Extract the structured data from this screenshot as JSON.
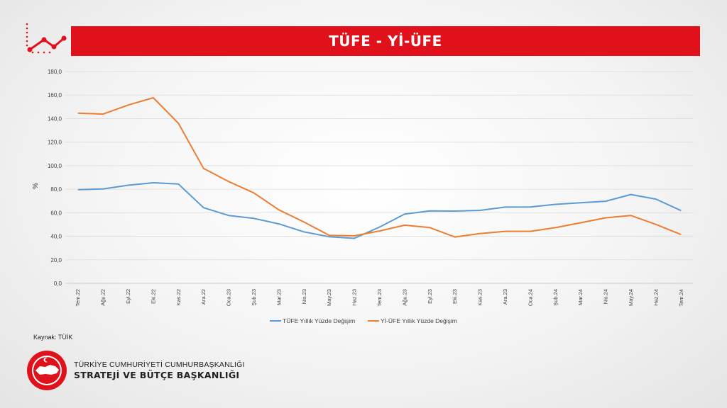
{
  "header": {
    "title": "TÜFE - Yİ-ÜFE"
  },
  "icons": {
    "trend": "line-chart-icon",
    "org_logo": "emblem-icon"
  },
  "colors": {
    "accent": "#e0111b",
    "tufe": "#5b9bd5",
    "yiufe": "#ed7d31"
  },
  "chart_data": {
    "type": "line",
    "ylabel": "%",
    "ylim": [
      0,
      180
    ],
    "yticks": [
      "0,0",
      "20,0",
      "40,0",
      "60,0",
      "80,0",
      "100,0",
      "120,0",
      "140,0",
      "160,0",
      "180,0"
    ],
    "grid": true,
    "legend_position": "bottom",
    "categories": [
      "Tem.22",
      "Ağu.22",
      "Eyl.22",
      "Eki.22",
      "Kas.22",
      "Ara.22",
      "Oca.23",
      "Şub.23",
      "Mar.23",
      "Nis.23",
      "May.23",
      "Haz.23",
      "Tem.23",
      "Ağu.23",
      "Eyl.23",
      "Eki.23",
      "Kas.23",
      "Ara.23",
      "Oca.24",
      "Şub.24",
      "Mar.24",
      "Nis.24",
      "May.24",
      "Haz.24",
      "Tem.24"
    ],
    "series": [
      {
        "name": "TÜFE Yıllık Yüzde Değişim",
        "color": "#5b9bd5",
        "values": [
          79.6,
          80.2,
          83.4,
          85.5,
          84.4,
          64.3,
          57.7,
          55.2,
          50.5,
          43.7,
          39.6,
          38.2,
          47.8,
          58.9,
          61.5,
          61.4,
          62.0,
          64.8,
          64.9,
          67.1,
          68.5,
          69.8,
          75.5,
          71.6,
          61.8
        ]
      },
      {
        "name": "Yİ-ÜFE Yıllık Yüzde Değişim",
        "color": "#ed7d31",
        "values": [
          144.6,
          143.8,
          151.5,
          157.7,
          136.0,
          97.7,
          86.5,
          76.9,
          62.4,
          52.1,
          40.8,
          40.4,
          44.5,
          49.4,
          47.4,
          39.4,
          42.3,
          44.2,
          44.2,
          47.3,
          51.5,
          55.7,
          57.7,
          50.1,
          41.4
        ]
      }
    ]
  },
  "footer": {
    "source": "Kaynak: TÜİK",
    "org_line1": "TÜRKİYE CUMHURİYETİ CUMHURBAŞKANLIĞI",
    "org_line2": "STRATEJİ VE BÜTÇE BAŞKANLIĞI"
  }
}
